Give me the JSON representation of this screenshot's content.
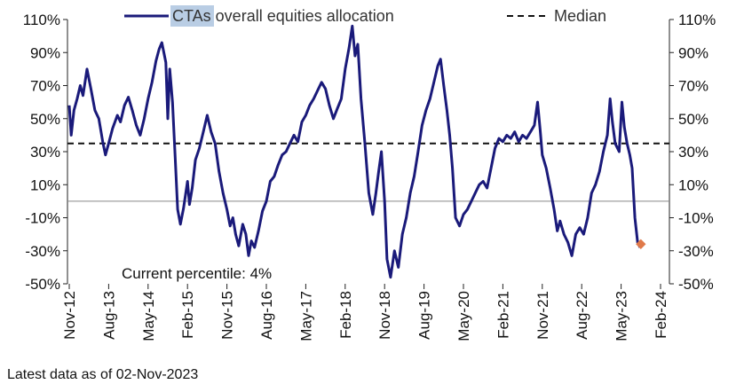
{
  "chart_data": {
    "type": "line",
    "title": "",
    "ylim": [
      -50,
      110
    ],
    "yticks": [
      110,
      90,
      70,
      50,
      30,
      10,
      -10,
      -30,
      -50
    ],
    "ytick_labels_left": [
      "110%",
      "90%",
      "70%",
      "50%",
      "30%",
      "10%",
      "-10%",
      "-30%",
      "-50%"
    ],
    "ytick_labels_right": [
      "110%",
      "90%",
      "70%",
      "50%",
      "30%",
      "10%",
      "-10%",
      "-30%",
      "-50%"
    ],
    "xtick_labels": [
      "Nov-12",
      "Aug-13",
      "May-14",
      "Feb-15",
      "Nov-15",
      "Aug-16",
      "May-17",
      "Feb-18",
      "Nov-18",
      "Aug-19",
      "May-20",
      "Feb-21",
      "Nov-21",
      "Aug-22",
      "May-23",
      "Feb-24"
    ],
    "legend": {
      "series_label_highlight": "CTAs",
      "series_label_rest": " overall equities allocation",
      "median_label": "Median"
    },
    "median": 35,
    "series": [
      {
        "name": "CTAs overall equities allocation",
        "color": "#1a1a7a",
        "points": [
          [
            0.0,
            58
          ],
          [
            0.05,
            40
          ],
          [
            0.12,
            55
          ],
          [
            0.2,
            62
          ],
          [
            0.28,
            70
          ],
          [
            0.35,
            64
          ],
          [
            0.45,
            80
          ],
          [
            0.55,
            68
          ],
          [
            0.65,
            55
          ],
          [
            0.75,
            50
          ],
          [
            0.85,
            36
          ],
          [
            0.92,
            28
          ],
          [
            1.0,
            35
          ],
          [
            1.1,
            44
          ],
          [
            1.22,
            52
          ],
          [
            1.3,
            48
          ],
          [
            1.4,
            58
          ],
          [
            1.5,
            63
          ],
          [
            1.6,
            55
          ],
          [
            1.7,
            46
          ],
          [
            1.8,
            40
          ],
          [
            1.9,
            50
          ],
          [
            2.0,
            62
          ],
          [
            2.1,
            72
          ],
          [
            2.2,
            85
          ],
          [
            2.28,
            92
          ],
          [
            2.35,
            96
          ],
          [
            2.45,
            84
          ],
          [
            2.5,
            50
          ],
          [
            2.55,
            80
          ],
          [
            2.62,
            60
          ],
          [
            2.68,
            30
          ],
          [
            2.75,
            -5
          ],
          [
            2.82,
            -14
          ],
          [
            2.9,
            -4
          ],
          [
            3.0,
            12
          ],
          [
            3.05,
            -2
          ],
          [
            3.12,
            8
          ],
          [
            3.2,
            25
          ],
          [
            3.3,
            32
          ],
          [
            3.4,
            42
          ],
          [
            3.5,
            52
          ],
          [
            3.6,
            42
          ],
          [
            3.7,
            35
          ],
          [
            3.8,
            18
          ],
          [
            3.9,
            5
          ],
          [
            4.0,
            -5
          ],
          [
            4.08,
            -15
          ],
          [
            4.15,
            -10
          ],
          [
            4.22,
            -20
          ],
          [
            4.3,
            -27
          ],
          [
            4.4,
            -14
          ],
          [
            4.48,
            -20
          ],
          [
            4.55,
            -33
          ],
          [
            4.62,
            -24
          ],
          [
            4.7,
            -28
          ],
          [
            4.8,
            -18
          ],
          [
            4.9,
            -6
          ],
          [
            5.0,
            0
          ],
          [
            5.1,
            12
          ],
          [
            5.2,
            15
          ],
          [
            5.3,
            22
          ],
          [
            5.4,
            28
          ],
          [
            5.5,
            30
          ],
          [
            5.6,
            35
          ],
          [
            5.7,
            40
          ],
          [
            5.8,
            36
          ],
          [
            5.9,
            48
          ],
          [
            6.0,
            52
          ],
          [
            6.1,
            58
          ],
          [
            6.2,
            62
          ],
          [
            6.3,
            67
          ],
          [
            6.4,
            72
          ],
          [
            6.5,
            68
          ],
          [
            6.6,
            58
          ],
          [
            6.7,
            50
          ],
          [
            6.8,
            56
          ],
          [
            6.9,
            62
          ],
          [
            7.0,
            80
          ],
          [
            7.1,
            93
          ],
          [
            7.18,
            106
          ],
          [
            7.25,
            88
          ],
          [
            7.32,
            95
          ],
          [
            7.4,
            62
          ],
          [
            7.5,
            35
          ],
          [
            7.6,
            5
          ],
          [
            7.7,
            -8
          ],
          [
            7.78,
            5
          ],
          [
            7.85,
            18
          ],
          [
            7.92,
            30
          ],
          [
            8.0,
            0
          ],
          [
            8.06,
            -35
          ],
          [
            8.15,
            -46
          ],
          [
            8.25,
            -30
          ],
          [
            8.35,
            -40
          ],
          [
            8.45,
            -20
          ],
          [
            8.55,
            -10
          ],
          [
            8.65,
            5
          ],
          [
            8.75,
            15
          ],
          [
            8.85,
            30
          ],
          [
            8.95,
            46
          ],
          [
            9.05,
            55
          ],
          [
            9.15,
            62
          ],
          [
            9.25,
            72
          ],
          [
            9.35,
            82
          ],
          [
            9.42,
            86
          ],
          [
            9.5,
            70
          ],
          [
            9.58,
            55
          ],
          [
            9.65,
            40
          ],
          [
            9.72,
            20
          ],
          [
            9.8,
            -10
          ],
          [
            9.9,
            -15
          ],
          [
            10.0,
            -8
          ],
          [
            10.1,
            -5
          ],
          [
            10.2,
            0
          ],
          [
            10.3,
            5
          ],
          [
            10.4,
            10
          ],
          [
            10.5,
            12
          ],
          [
            10.6,
            8
          ],
          [
            10.7,
            20
          ],
          [
            10.8,
            32
          ],
          [
            10.9,
            38
          ],
          [
            11.0,
            36
          ],
          [
            11.1,
            40
          ],
          [
            11.2,
            38
          ],
          [
            11.3,
            42
          ],
          [
            11.4,
            36
          ],
          [
            11.5,
            40
          ],
          [
            11.6,
            38
          ],
          [
            11.7,
            42
          ],
          [
            11.8,
            46
          ],
          [
            11.88,
            60
          ],
          [
            11.95,
            42
          ],
          [
            12.0,
            28
          ],
          [
            12.1,
            20
          ],
          [
            12.2,
            8
          ],
          [
            12.3,
            -5
          ],
          [
            12.38,
            -18
          ],
          [
            12.45,
            -12
          ],
          [
            12.55,
            -20
          ],
          [
            12.65,
            -25
          ],
          [
            12.75,
            -33
          ],
          [
            12.85,
            -20
          ],
          [
            12.95,
            -16
          ],
          [
            13.05,
            -20
          ],
          [
            13.15,
            -10
          ],
          [
            13.25,
            5
          ],
          [
            13.35,
            10
          ],
          [
            13.45,
            18
          ],
          [
            13.55,
            30
          ],
          [
            13.65,
            40
          ],
          [
            13.72,
            62
          ],
          [
            13.78,
            48
          ],
          [
            13.85,
            35
          ],
          [
            13.95,
            30
          ],
          [
            14.02,
            60
          ],
          [
            14.08,
            45
          ],
          [
            14.15,
            35
          ],
          [
            14.22,
            28
          ],
          [
            14.28,
            20
          ],
          [
            14.35,
            -10
          ],
          [
            14.42,
            -25
          ],
          [
            14.48,
            -28
          ]
        ]
      }
    ],
    "current_point": [
      14.5,
      -26
    ],
    "annotations": {
      "current_percentile": "Current percentile: 4%"
    },
    "footnote": "Latest data as of 02-Nov-2023"
  }
}
